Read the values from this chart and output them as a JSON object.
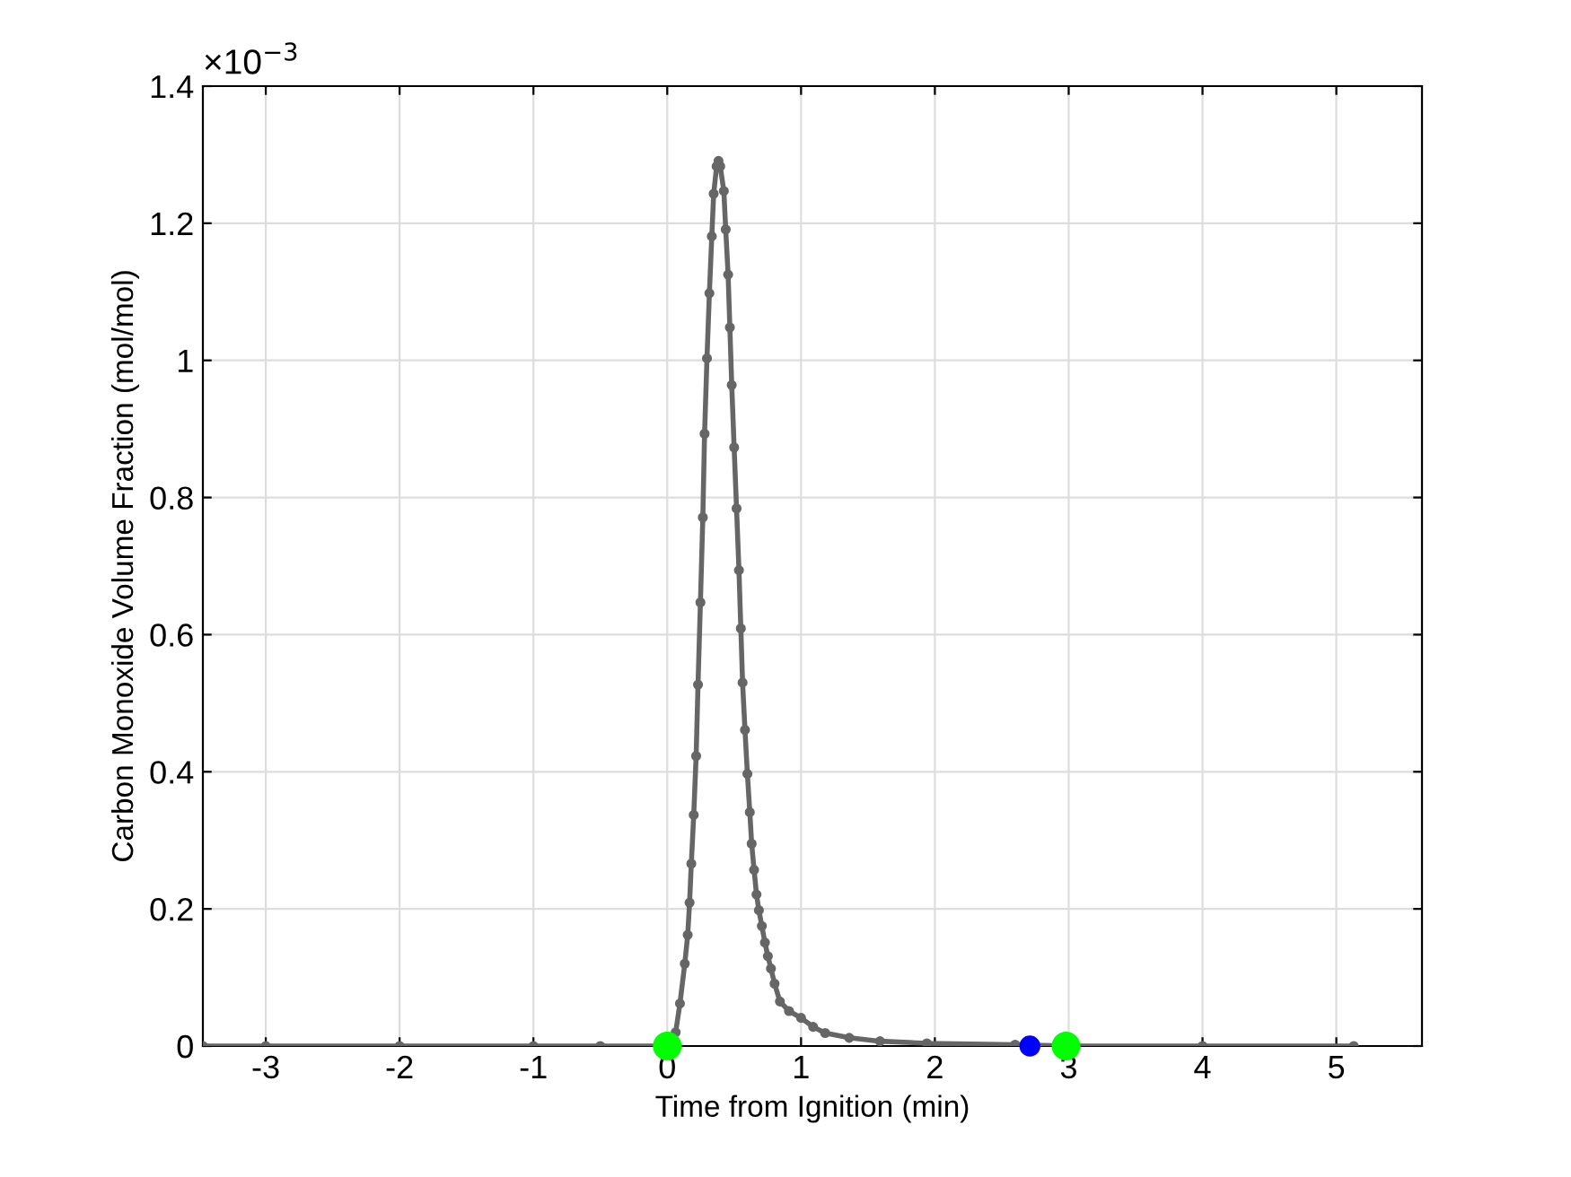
{
  "chart_data": {
    "type": "line",
    "xlabel": "Time from Ignition (min)",
    "ylabel": "Carbon Monoxide Volume Fraction (mol/mol)",
    "annotations": [
      "×10$^{−3}$"
    ],
    "xlim": [
      -3.47,
      5.64
    ],
    "xticks": [
      -3,
      -2,
      -1,
      0,
      1,
      2,
      3,
      4,
      5
    ],
    "ylim": [
      0,
      1.4
    ],
    "yticks": [
      0,
      0.2,
      0.4,
      0.6,
      0.8,
      1,
      1.2,
      1.4
    ],
    "grid": true,
    "legend": false,
    "series": [
      {
        "color": "#666666",
        "marker": "circle",
        "line_style": "solid",
        "x": [
          -3.47,
          -3,
          -2,
          -1,
          -0.5,
          0,
          0.063,
          0.095,
          0.131,
          0.153,
          0.167,
          0.18,
          0.198,
          0.216,
          0.23,
          0.248,
          0.266,
          0.279,
          0.297,
          0.315,
          0.333,
          0.347,
          0.369,
          0.383,
          0.396,
          0.423,
          0.437,
          0.455,
          0.468,
          0.482,
          0.5,
          0.518,
          0.536,
          0.55,
          0.563,
          0.581,
          0.599,
          0.617,
          0.631,
          0.649,
          0.667,
          0.685,
          0.707,
          0.73,
          0.752,
          0.775,
          0.802,
          0.842,
          0.91,
          1.0,
          1.09,
          1.18,
          1.36,
          1.59,
          1.94,
          2.6,
          3,
          4,
          5.13
        ],
        "values": [
          0,
          0,
          0,
          0,
          0,
          0,
          0.02,
          0.062,
          0.12,
          0.162,
          0.209,
          0.266,
          0.337,
          0.423,
          0.527,
          0.647,
          0.771,
          0.893,
          1.003,
          1.098,
          1.181,
          1.243,
          1.283,
          1.291,
          1.283,
          1.247,
          1.191,
          1.125,
          1.048,
          0.964,
          0.873,
          0.784,
          0.694,
          0.609,
          0.53,
          0.461,
          0.397,
          0.341,
          0.295,
          0.257,
          0.221,
          0.198,
          0.175,
          0.151,
          0.131,
          0.113,
          0.091,
          0.065,
          0.051,
          0.041,
          0.028,
          0.019,
          0.012,
          0.007,
          0.004,
          0.002,
          0,
          0,
          0
        ]
      },
      {
        "type": "scatter",
        "color": "#00ff00",
        "marker": "circle",
        "x": [
          0,
          2.98
        ],
        "values": [
          0,
          0
        ]
      },
      {
        "type": "scatter",
        "color": "#0000ff",
        "marker": "circle",
        "x": [
          2.71
        ],
        "values": [
          0
        ]
      }
    ]
  }
}
